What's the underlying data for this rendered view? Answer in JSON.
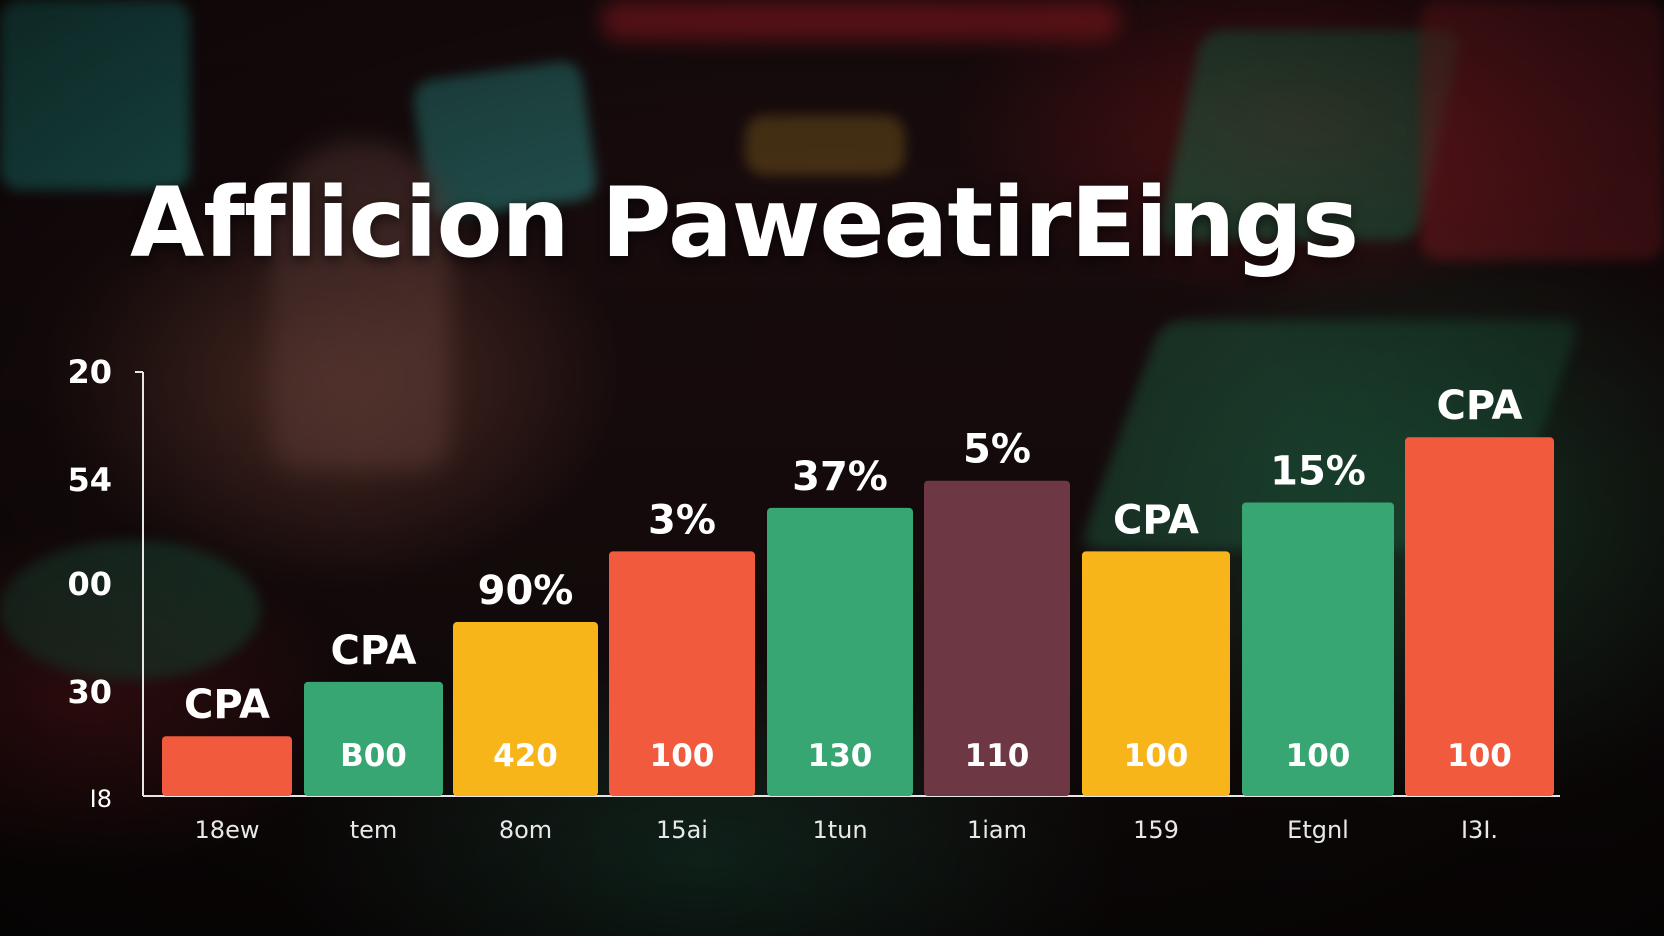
{
  "title": "Afflicion PaweatirEings",
  "colors": {
    "red": "#f25a3e",
    "green": "#37a672",
    "yellow": "#f7b519",
    "maroon": "#6e3744",
    "axis": "#e6e6e6",
    "text": "#ffffff"
  },
  "chart_data": {
    "type": "bar",
    "title": "Afflicion PaweatirEings",
    "xlabel": "",
    "ylabel": "",
    "grid": false,
    "y_tick_labels": [
      "20",
      "54",
      "00",
      "30",
      "I8"
    ],
    "categories": [
      "18ew",
      "tem",
      "8om",
      "15ai",
      "1tun",
      "1iam",
      "159",
      "Etgnl",
      "I3I."
    ],
    "values": [
      1.1,
      2.1,
      3.2,
      4.5,
      5.3,
      5.8,
      4.5,
      5.4,
      6.6
    ],
    "ylim": [
      0,
      7.8
    ],
    "bar_colors": [
      "red",
      "green",
      "yellow",
      "red",
      "green",
      "maroon",
      "yellow",
      "green",
      "red"
    ],
    "top_labels": [
      "CPA",
      "CPA",
      "90%",
      "3%",
      "37%",
      "5%",
      "CPA",
      "15%",
      "CPA"
    ],
    "inner_labels": [
      "",
      "B00",
      "420",
      "100",
      "130",
      "110",
      "100",
      "100",
      "100"
    ]
  }
}
